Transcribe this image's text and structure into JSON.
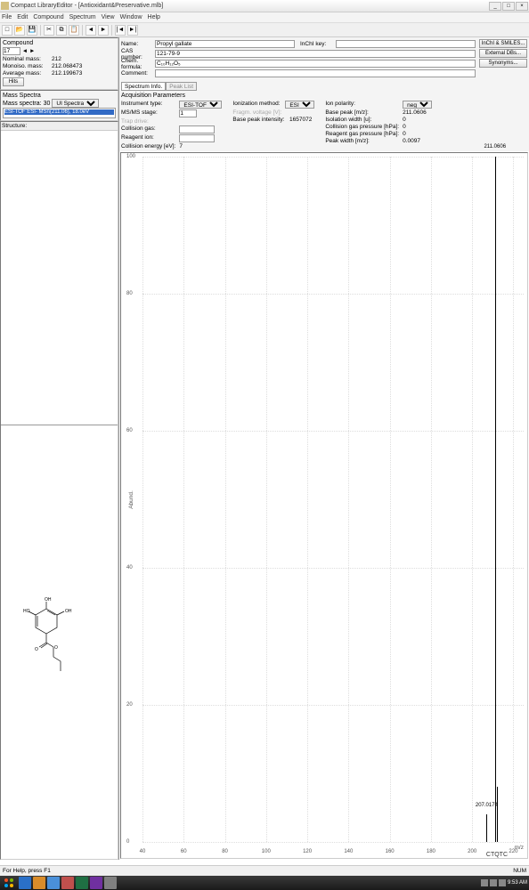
{
  "window": {
    "title": "Compact LibraryEditor - [Antioxidant&Preservative.mlb]"
  },
  "menu": {
    "file": "File",
    "edit": "Edit",
    "compound": "Compound",
    "spectrum": "Spectrum",
    "view": "View",
    "window": "Window",
    "help": "Help"
  },
  "compound": {
    "header": "Compound",
    "id_label": "",
    "id": "17",
    "nominal_label": "Nominal mass:",
    "nominal": "212",
    "monoiso_label": "Monoiso. mass:",
    "monoiso": "212.068473",
    "average_label": "Average mass:",
    "average": "212.199673",
    "hits_button": "Hits"
  },
  "mass_spectra": {
    "header": "Mass Spectra",
    "count_label": "Mass spectra:",
    "count": "30",
    "item": "ESI-TOF ESI- MSn(211.06), 18.0eV",
    "view": "UI Spectra"
  },
  "info": {
    "name_label": "Name:",
    "name": "Propyl gallate",
    "cas_label": "CAS number:",
    "cas": "121-79-9",
    "formula_label": "Chem. formula:",
    "formula": "C₁₀H₁₂O₅",
    "comment_label": "Comment:",
    "comment": "",
    "inchi_label": "InChI key:"
  },
  "buttons": {
    "inchi": "InChI & SMILES...",
    "extdb": "External DBs...",
    "syn": "Synonyms..."
  },
  "structure": {
    "label": "Structure:"
  },
  "acq": {
    "tab1": "Spectrum Info.",
    "tab2": "Peak List",
    "title": "Acquisition Parameters",
    "instrument_label": "Instrument type:",
    "instrument": "ESI-TOF",
    "msms_label": "MS/MS stage:",
    "msms": "1",
    "trap_label": "Trap drive:",
    "ionization_label": "Ionization method:",
    "ionization": "ESI",
    "fragvolt_label": "Fragm. voltage [V]:",
    "collgas_label": "Collision gas:",
    "reagion_label": "Reagent ion:",
    "collenergy_label": "Collision energy [eV]:",
    "collenergy": "7",
    "bpi_label": "Base peak intensity:",
    "bpi": "1657072",
    "polarity_label": "Ion polarity:",
    "polarity": "neg",
    "basepeak_label": "Base peak [m/z]:",
    "basepeak": "211.0606",
    "isolwidth_label": "Isolation width [u]:",
    "isolwidth": "0",
    "collpress_label": "Collision gas pressure [hPa]:",
    "collpress": "0",
    "reagpress_label": "Reagent gas pressure [hPa]:",
    "reagpress": "0",
    "peakwidth_label": "Peak width [m/z]:",
    "peakwidth": "0.0097"
  },
  "spectrum": {
    "ylabel": "Abund.",
    "xunit": "m/z",
    "brand": "CTQTC",
    "xticks": [
      "40",
      "60",
      "80",
      "100",
      "120",
      "140",
      "160",
      "180",
      "200",
      "220"
    ],
    "yticks": [
      "0",
      "20",
      "40",
      "60",
      "80",
      "100"
    ],
    "xmin": 40,
    "xmax": 225,
    "peaks": [
      {
        "mz": 211.0606,
        "abund": 100,
        "label": "211.0606"
      },
      {
        "mz": 207.0174,
        "abund": 4,
        "label": "207.0174"
      },
      {
        "mz": 212.06,
        "abund": 8,
        "label": ""
      }
    ],
    "grid_color": "#dddddd"
  },
  "status": {
    "help": "For Help, press F1",
    "caps": "NUM",
    "time": "9:53 AM"
  }
}
